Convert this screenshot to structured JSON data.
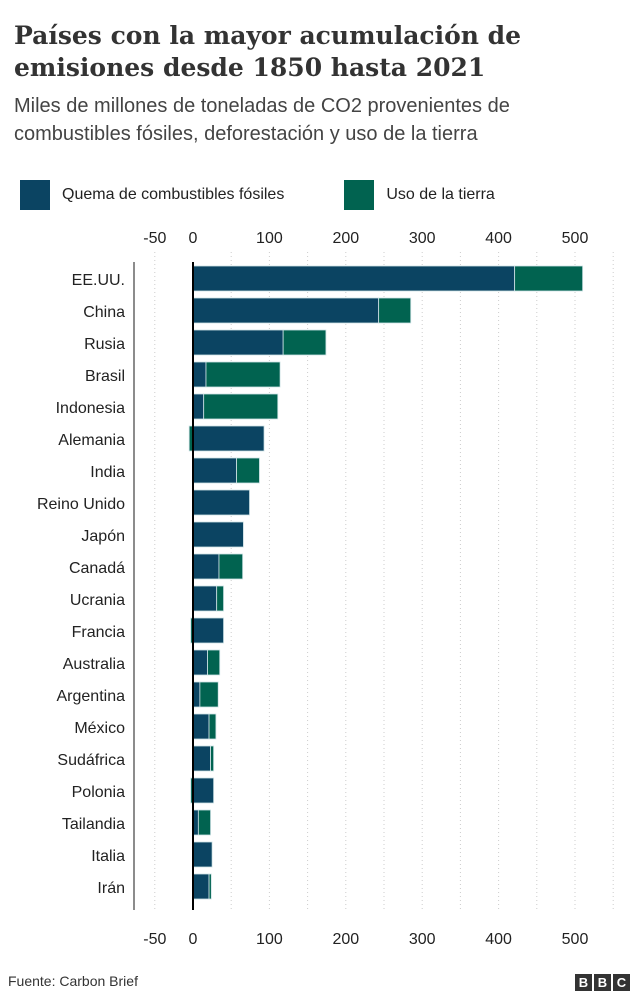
{
  "chart_data": {
    "type": "bar",
    "stacked": true,
    "orientation": "horizontal",
    "title": "Países con la mayor acumulación de emisiones desde 1850 hasta 2021",
    "subtitle": "Miles de millones de toneladas de CO2 provenientes de combustibles fósiles, deforestación y uso de la tierra",
    "categories": [
      "EE.UU.",
      "China",
      "Rusia",
      "Brasil",
      "Indonesia",
      "Alemania",
      "India",
      "Reino Unido",
      "Japón",
      "Canadá",
      "Ucrania",
      "Francia",
      "Australia",
      "Argentina",
      "México",
      "Sudáfrica",
      "Polonia",
      "Tailandia",
      "Italia",
      "Irán"
    ],
    "series": [
      {
        "name": "Quema de combustibles fósiles",
        "color": "#0b4462",
        "values": [
          421,
          243,
          118,
          17,
          14,
          93,
          57,
          74,
          66,
          34,
          31,
          40,
          19,
          9,
          21,
          23,
          27,
          7,
          25,
          21
        ]
      },
      {
        "name": "Uso de la tierra",
        "color": "#016350",
        "values": [
          89,
          42,
          56,
          97,
          97,
          -5,
          30,
          0,
          0,
          31,
          9,
          -3,
          16,
          24,
          9,
          4,
          -3,
          16,
          0,
          3
        ]
      }
    ],
    "xlim": [
      -60,
      560
    ],
    "xticks": [
      -50,
      0,
      100,
      200,
      300,
      400,
      500
    ],
    "xtick_labels": [
      "-50",
      "0",
      "100",
      "200",
      "300",
      "400",
      "500"
    ],
    "grid": true,
    "legend": "top"
  },
  "footer": {
    "source": "Fuente: Carbon Brief",
    "logo": "BBC"
  }
}
